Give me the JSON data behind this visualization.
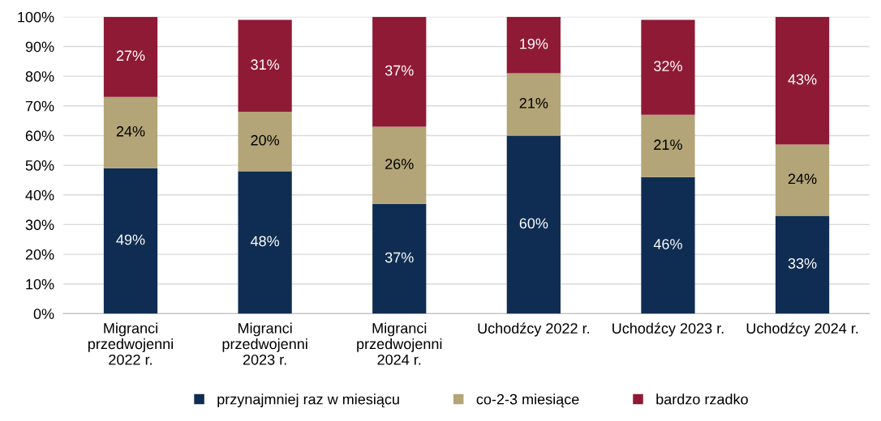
{
  "chart_data": {
    "type": "bar",
    "stacked": true,
    "categories": [
      "Migranci\nprzedwojenni\n2022 r.",
      "Migranci\nprzedwojenni\n2023 r.",
      "Migranci\nprzedwojenni\n2024 r.",
      "Uchodźcy 2022 r.",
      "Uchodźcy 2023 r.",
      "Uchodźcy 2024 r."
    ],
    "series": [
      {
        "name": "przynajmniej raz w miesiącu",
        "color": "#0f2d52",
        "values": [
          49,
          48,
          37,
          60,
          46,
          33
        ],
        "value_labels": [
          "49%",
          "48%",
          "37%",
          "60%",
          "46%",
          "33%"
        ]
      },
      {
        "name": "co-2-3 miesiące",
        "color": "#b3a577",
        "values": [
          24,
          20,
          26,
          21,
          21,
          24
        ],
        "value_labels": [
          "24%",
          "20%",
          "26%",
          "21%",
          "21%",
          "24%"
        ]
      },
      {
        "name": "bardzo rzadko",
        "color": "#8f1a35",
        "values": [
          27,
          31,
          37,
          19,
          32,
          43
        ],
        "value_labels": [
          "27%",
          "31%",
          "37%",
          "19%",
          "32%",
          "43%"
        ]
      }
    ],
    "ylim": [
      0,
      100
    ],
    "yticks": [
      {
        "value": 0,
        "label": "0%"
      },
      {
        "value": 10,
        "label": "10%"
      },
      {
        "value": 20,
        "label": "20%"
      },
      {
        "value": 30,
        "label": "30%"
      },
      {
        "value": 40,
        "label": "40%"
      },
      {
        "value": 50,
        "label": "50%"
      },
      {
        "value": 60,
        "label": "60%"
      },
      {
        "value": 70,
        "label": "70%"
      },
      {
        "value": 80,
        "label": "80%"
      },
      {
        "value": 90,
        "label": "90%"
      },
      {
        "value": 100,
        "label": "100%"
      }
    ],
    "grid": "y",
    "legend": "bottom"
  }
}
